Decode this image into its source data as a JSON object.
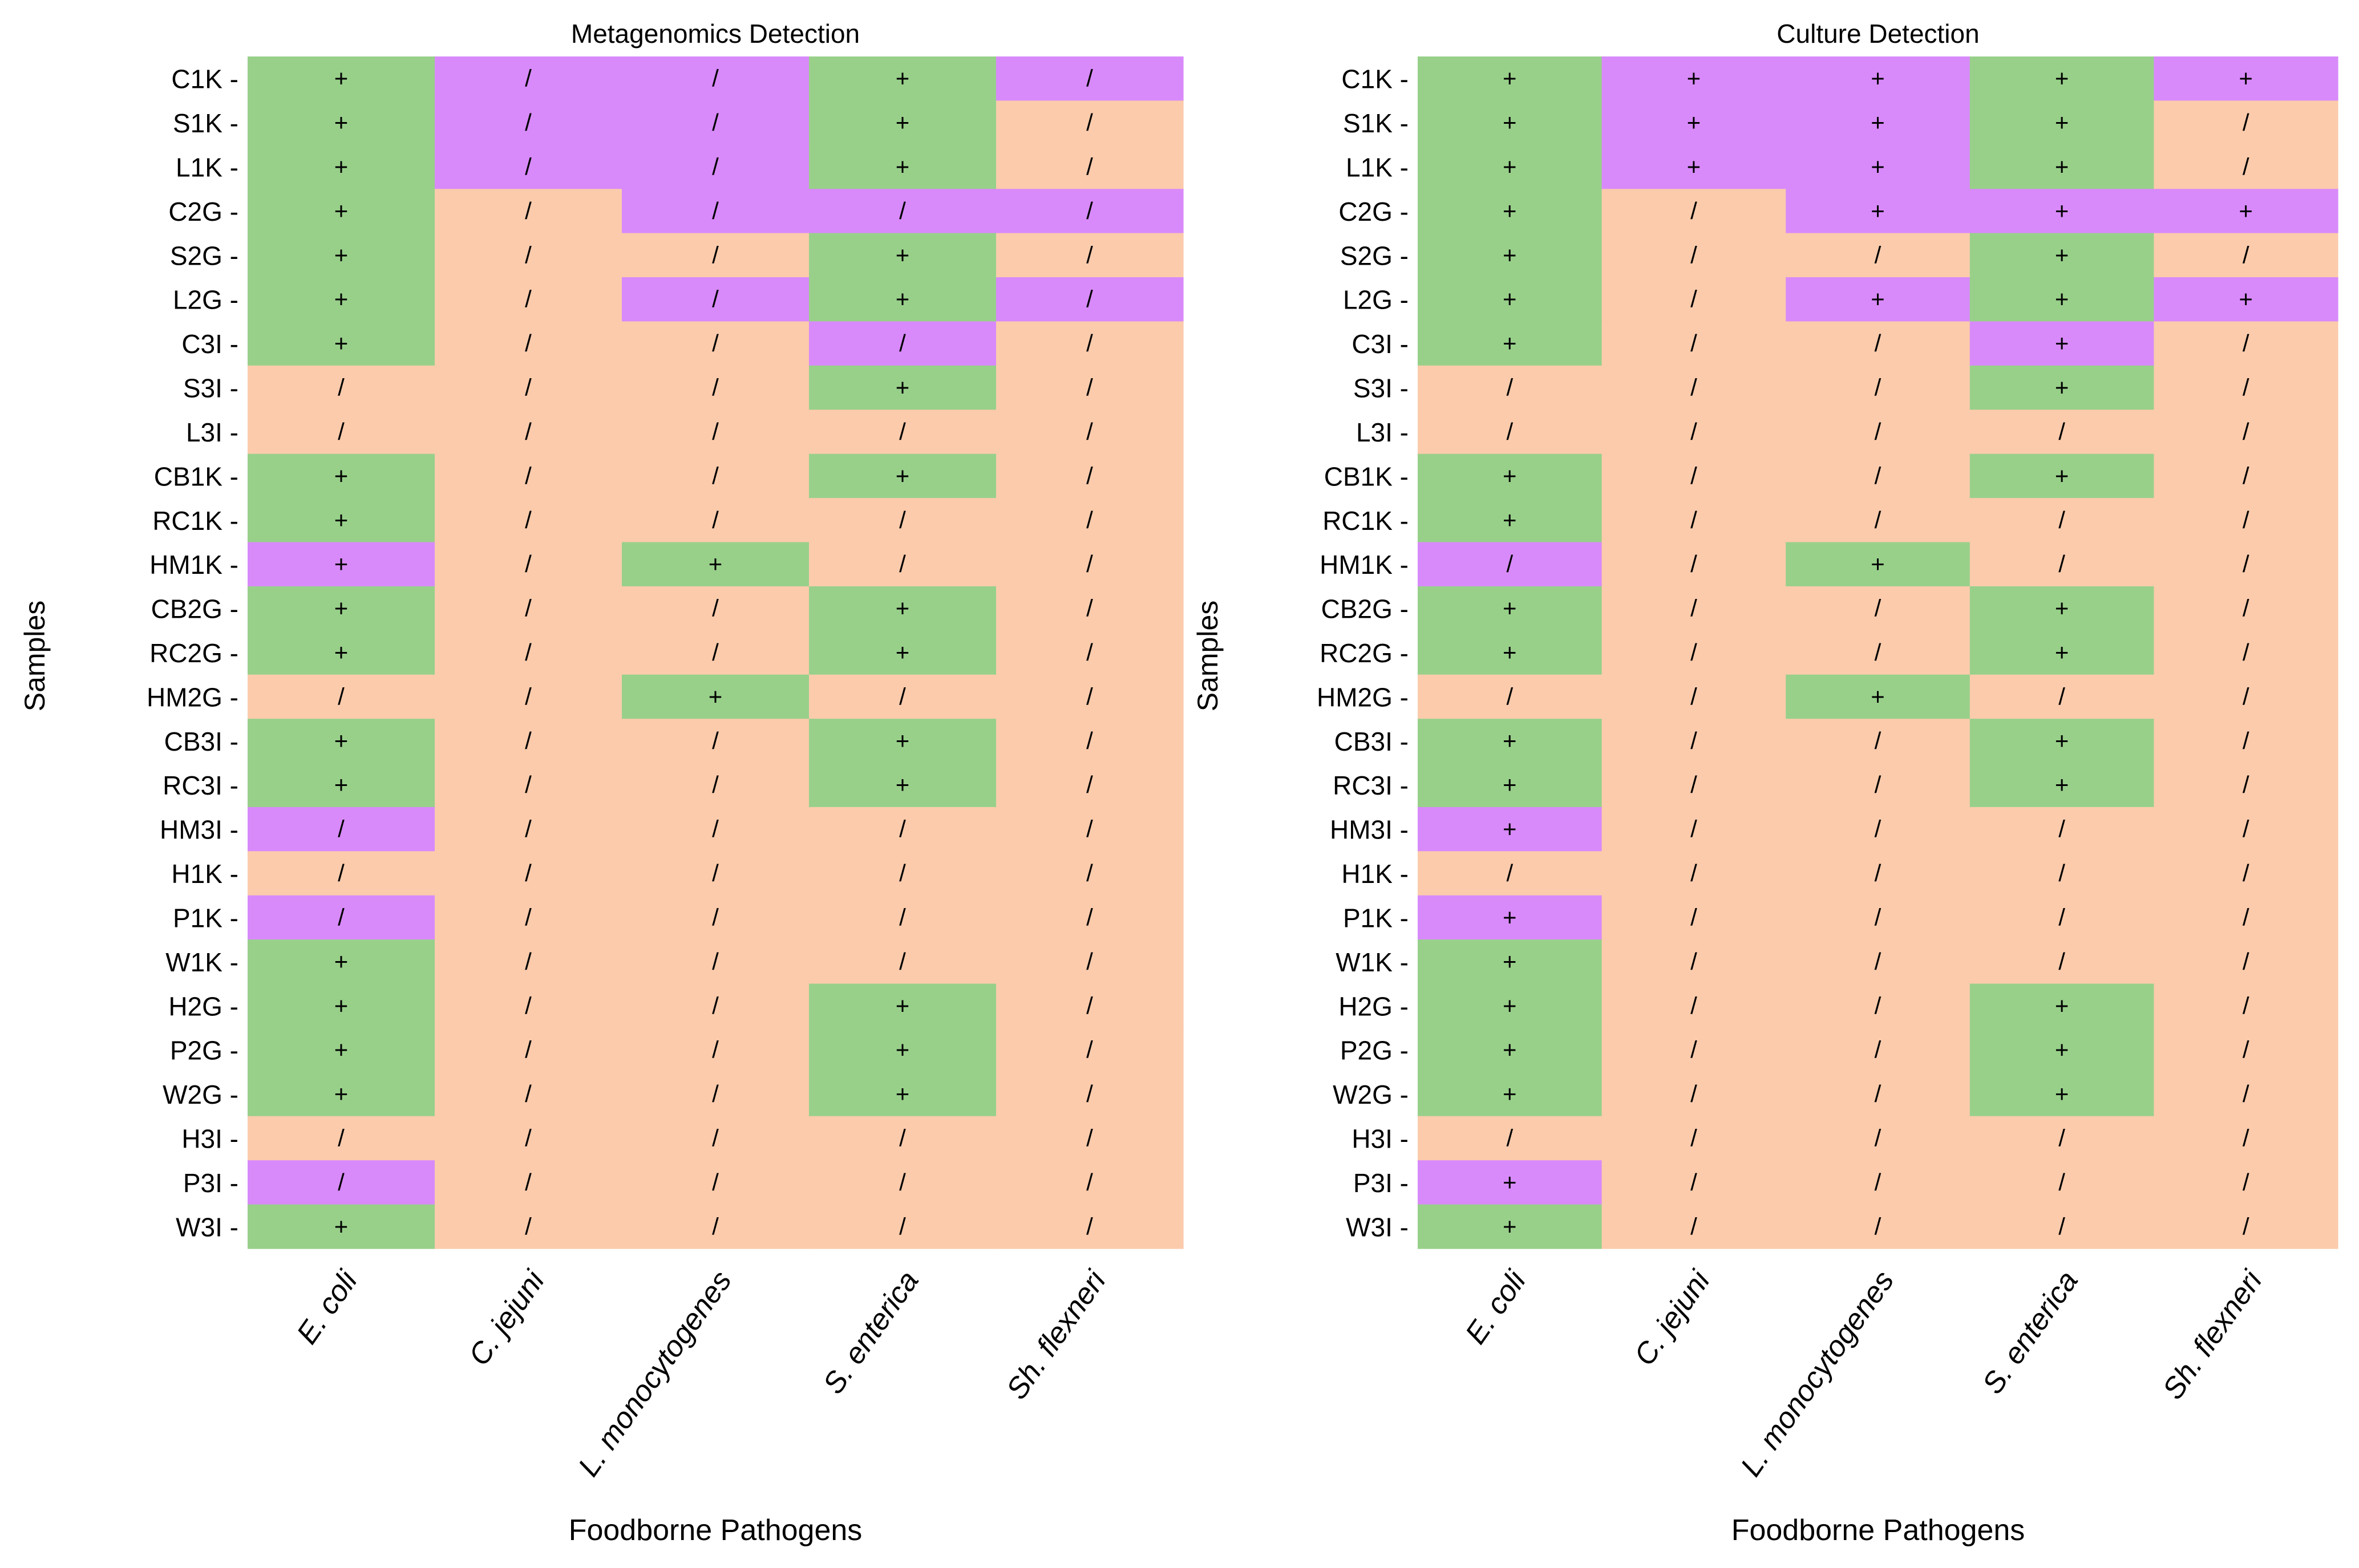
{
  "colors": {
    "both": "#98D08A",
    "single": "#D88AFA",
    "none": "#FBCBAC"
  },
  "samples_axis_label": "Samples",
  "pathogens_axis_label": "Foodborne Pathogens",
  "chart_data": [
    {
      "type": "heatmap",
      "title": "Metagenomics Detection",
      "xlabel": "Foodborne Pathogens",
      "ylabel": "Samples",
      "x": [
        "E. coli",
        "C. jejuni",
        "L. monocytogenes",
        "S. enterica",
        "Sh. flexneri"
      ],
      "y": [
        "C1K",
        "S1K",
        "L1K",
        "C2G",
        "S2G",
        "L2G",
        "C3I",
        "S3I",
        "L3I",
        "CB1K",
        "RC1K",
        "HM1K",
        "CB2G",
        "RC2G",
        "HM2G",
        "CB3I",
        "RC3I",
        "HM3I",
        "H1K",
        "P1K",
        "W1K",
        "H2G",
        "P2G",
        "W2G",
        "H3I",
        "P3I",
        "W3I"
      ],
      "symbols": [
        [
          "+",
          "/",
          "/",
          "+",
          "/"
        ],
        [
          "+",
          "/",
          "/",
          "+",
          "/"
        ],
        [
          "+",
          "/",
          "/",
          "+",
          "/"
        ],
        [
          "+",
          "/",
          "/",
          "/",
          "/"
        ],
        [
          "+",
          "/",
          "/",
          "+",
          "/"
        ],
        [
          "+",
          "/",
          "/",
          "+",
          "/"
        ],
        [
          "+",
          "/",
          "/",
          "/",
          "/"
        ],
        [
          "/",
          "/",
          "/",
          "+",
          "/"
        ],
        [
          "/",
          "/",
          "/",
          "/",
          "/"
        ],
        [
          "+",
          "/",
          "/",
          "+",
          "/"
        ],
        [
          "+",
          "/",
          "/",
          "/",
          "/"
        ],
        [
          "+",
          "/",
          "+",
          "/",
          "/"
        ],
        [
          "+",
          "/",
          "/",
          "+",
          "/"
        ],
        [
          "+",
          "/",
          "/",
          "+",
          "/"
        ],
        [
          "/",
          "/",
          "+",
          "/",
          "/"
        ],
        [
          "+",
          "/",
          "/",
          "+",
          "/"
        ],
        [
          "+",
          "/",
          "/",
          "+",
          "/"
        ],
        [
          "/",
          "/",
          "/",
          "/",
          "/"
        ],
        [
          "/",
          "/",
          "/",
          "/",
          "/"
        ],
        [
          "/",
          "/",
          "/",
          "/",
          "/"
        ],
        [
          "+",
          "/",
          "/",
          "/",
          "/"
        ],
        [
          "+",
          "/",
          "/",
          "+",
          "/"
        ],
        [
          "+",
          "/",
          "/",
          "+",
          "/"
        ],
        [
          "+",
          "/",
          "/",
          "+",
          "/"
        ],
        [
          "/",
          "/",
          "/",
          "/",
          "/"
        ],
        [
          "/",
          "/",
          "/",
          "/",
          "/"
        ],
        [
          "+",
          "/",
          "/",
          "/",
          "/"
        ]
      ],
      "cell_class": [
        [
          "both",
          "single",
          "single",
          "both",
          "single"
        ],
        [
          "both",
          "single",
          "single",
          "both",
          "none"
        ],
        [
          "both",
          "single",
          "single",
          "both",
          "none"
        ],
        [
          "both",
          "none",
          "single",
          "single",
          "single"
        ],
        [
          "both",
          "none",
          "none",
          "both",
          "none"
        ],
        [
          "both",
          "none",
          "single",
          "both",
          "single"
        ],
        [
          "both",
          "none",
          "none",
          "single",
          "none"
        ],
        [
          "none",
          "none",
          "none",
          "both",
          "none"
        ],
        [
          "none",
          "none",
          "none",
          "none",
          "none"
        ],
        [
          "both",
          "none",
          "none",
          "both",
          "none"
        ],
        [
          "both",
          "none",
          "none",
          "none",
          "none"
        ],
        [
          "single",
          "none",
          "both",
          "none",
          "none"
        ],
        [
          "both",
          "none",
          "none",
          "both",
          "none"
        ],
        [
          "both",
          "none",
          "none",
          "both",
          "none"
        ],
        [
          "none",
          "none",
          "both",
          "none",
          "none"
        ],
        [
          "both",
          "none",
          "none",
          "both",
          "none"
        ],
        [
          "both",
          "none",
          "none",
          "both",
          "none"
        ],
        [
          "single",
          "none",
          "none",
          "none",
          "none"
        ],
        [
          "none",
          "none",
          "none",
          "none",
          "none"
        ],
        [
          "single",
          "none",
          "none",
          "none",
          "none"
        ],
        [
          "both",
          "none",
          "none",
          "none",
          "none"
        ],
        [
          "both",
          "none",
          "none",
          "both",
          "none"
        ],
        [
          "both",
          "none",
          "none",
          "both",
          "none"
        ],
        [
          "both",
          "none",
          "none",
          "both",
          "none"
        ],
        [
          "none",
          "none",
          "none",
          "none",
          "none"
        ],
        [
          "single",
          "none",
          "none",
          "none",
          "none"
        ],
        [
          "both",
          "none",
          "none",
          "none",
          "none"
        ]
      ]
    },
    {
      "type": "heatmap",
      "title": "Culture Detection",
      "xlabel": "Foodborne Pathogens",
      "ylabel": "Samples",
      "x": [
        "E. coli",
        "C. jejuni",
        "L. monocytogenes",
        "S. enterica",
        "Sh. flexneri"
      ],
      "y": [
        "C1K",
        "S1K",
        "L1K",
        "C2G",
        "S2G",
        "L2G",
        "C3I",
        "S3I",
        "L3I",
        "CB1K",
        "RC1K",
        "HM1K",
        "CB2G",
        "RC2G",
        "HM2G",
        "CB3I",
        "RC3I",
        "HM3I",
        "H1K",
        "P1K",
        "W1K",
        "H2G",
        "P2G",
        "W2G",
        "H3I",
        "P3I",
        "W3I"
      ],
      "symbols": [
        [
          "+",
          "+",
          "+",
          "+",
          "+"
        ],
        [
          "+",
          "+",
          "+",
          "+",
          "/"
        ],
        [
          "+",
          "+",
          "+",
          "+",
          "/"
        ],
        [
          "+",
          "/",
          "+",
          "+",
          "+"
        ],
        [
          "+",
          "/",
          "/",
          "+",
          "/"
        ],
        [
          "+",
          "/",
          "+",
          "+",
          "+"
        ],
        [
          "+",
          "/",
          "/",
          "+",
          "/"
        ],
        [
          "/",
          "/",
          "/",
          "+",
          "/"
        ],
        [
          "/",
          "/",
          "/",
          "/",
          "/"
        ],
        [
          "+",
          "/",
          "/",
          "+",
          "/"
        ],
        [
          "+",
          "/",
          "/",
          "/",
          "/"
        ],
        [
          "/",
          "/",
          "+",
          "/",
          "/"
        ],
        [
          "+",
          "/",
          "/",
          "+",
          "/"
        ],
        [
          "+",
          "/",
          "/",
          "+",
          "/"
        ],
        [
          "/",
          "/",
          "+",
          "/",
          "/"
        ],
        [
          "+",
          "/",
          "/",
          "+",
          "/"
        ],
        [
          "+",
          "/",
          "/",
          "+",
          "/"
        ],
        [
          "+",
          "/",
          "/",
          "/",
          "/"
        ],
        [
          "/",
          "/",
          "/",
          "/",
          "/"
        ],
        [
          "+",
          "/",
          "/",
          "/",
          "/"
        ],
        [
          "+",
          "/",
          "/",
          "/",
          "/"
        ],
        [
          "+",
          "/",
          "/",
          "+",
          "/"
        ],
        [
          "+",
          "/",
          "/",
          "+",
          "/"
        ],
        [
          "+",
          "/",
          "/",
          "+",
          "/"
        ],
        [
          "/",
          "/",
          "/",
          "/",
          "/"
        ],
        [
          "+",
          "/",
          "/",
          "/",
          "/"
        ],
        [
          "+",
          "/",
          "/",
          "/",
          "/"
        ]
      ],
      "cell_class": [
        [
          "both",
          "single",
          "single",
          "both",
          "single"
        ],
        [
          "both",
          "single",
          "single",
          "both",
          "none"
        ],
        [
          "both",
          "single",
          "single",
          "both",
          "none"
        ],
        [
          "both",
          "none",
          "single",
          "single",
          "single"
        ],
        [
          "both",
          "none",
          "none",
          "both",
          "none"
        ],
        [
          "both",
          "none",
          "single",
          "both",
          "single"
        ],
        [
          "both",
          "none",
          "none",
          "single",
          "none"
        ],
        [
          "none",
          "none",
          "none",
          "both",
          "none"
        ],
        [
          "none",
          "none",
          "none",
          "none",
          "none"
        ],
        [
          "both",
          "none",
          "none",
          "both",
          "none"
        ],
        [
          "both",
          "none",
          "none",
          "none",
          "none"
        ],
        [
          "single",
          "none",
          "both",
          "none",
          "none"
        ],
        [
          "both",
          "none",
          "none",
          "both",
          "none"
        ],
        [
          "both",
          "none",
          "none",
          "both",
          "none"
        ],
        [
          "none",
          "none",
          "both",
          "none",
          "none"
        ],
        [
          "both",
          "none",
          "none",
          "both",
          "none"
        ],
        [
          "both",
          "none",
          "none",
          "both",
          "none"
        ],
        [
          "single",
          "none",
          "none",
          "none",
          "none"
        ],
        [
          "none",
          "none",
          "none",
          "none",
          "none"
        ],
        [
          "single",
          "none",
          "none",
          "none",
          "none"
        ],
        [
          "both",
          "none",
          "none",
          "none",
          "none"
        ],
        [
          "both",
          "none",
          "none",
          "both",
          "none"
        ],
        [
          "both",
          "none",
          "none",
          "both",
          "none"
        ],
        [
          "both",
          "none",
          "none",
          "both",
          "none"
        ],
        [
          "none",
          "none",
          "none",
          "none",
          "none"
        ],
        [
          "single",
          "none",
          "none",
          "none",
          "none"
        ],
        [
          "both",
          "none",
          "none",
          "none",
          "none"
        ]
      ]
    }
  ]
}
